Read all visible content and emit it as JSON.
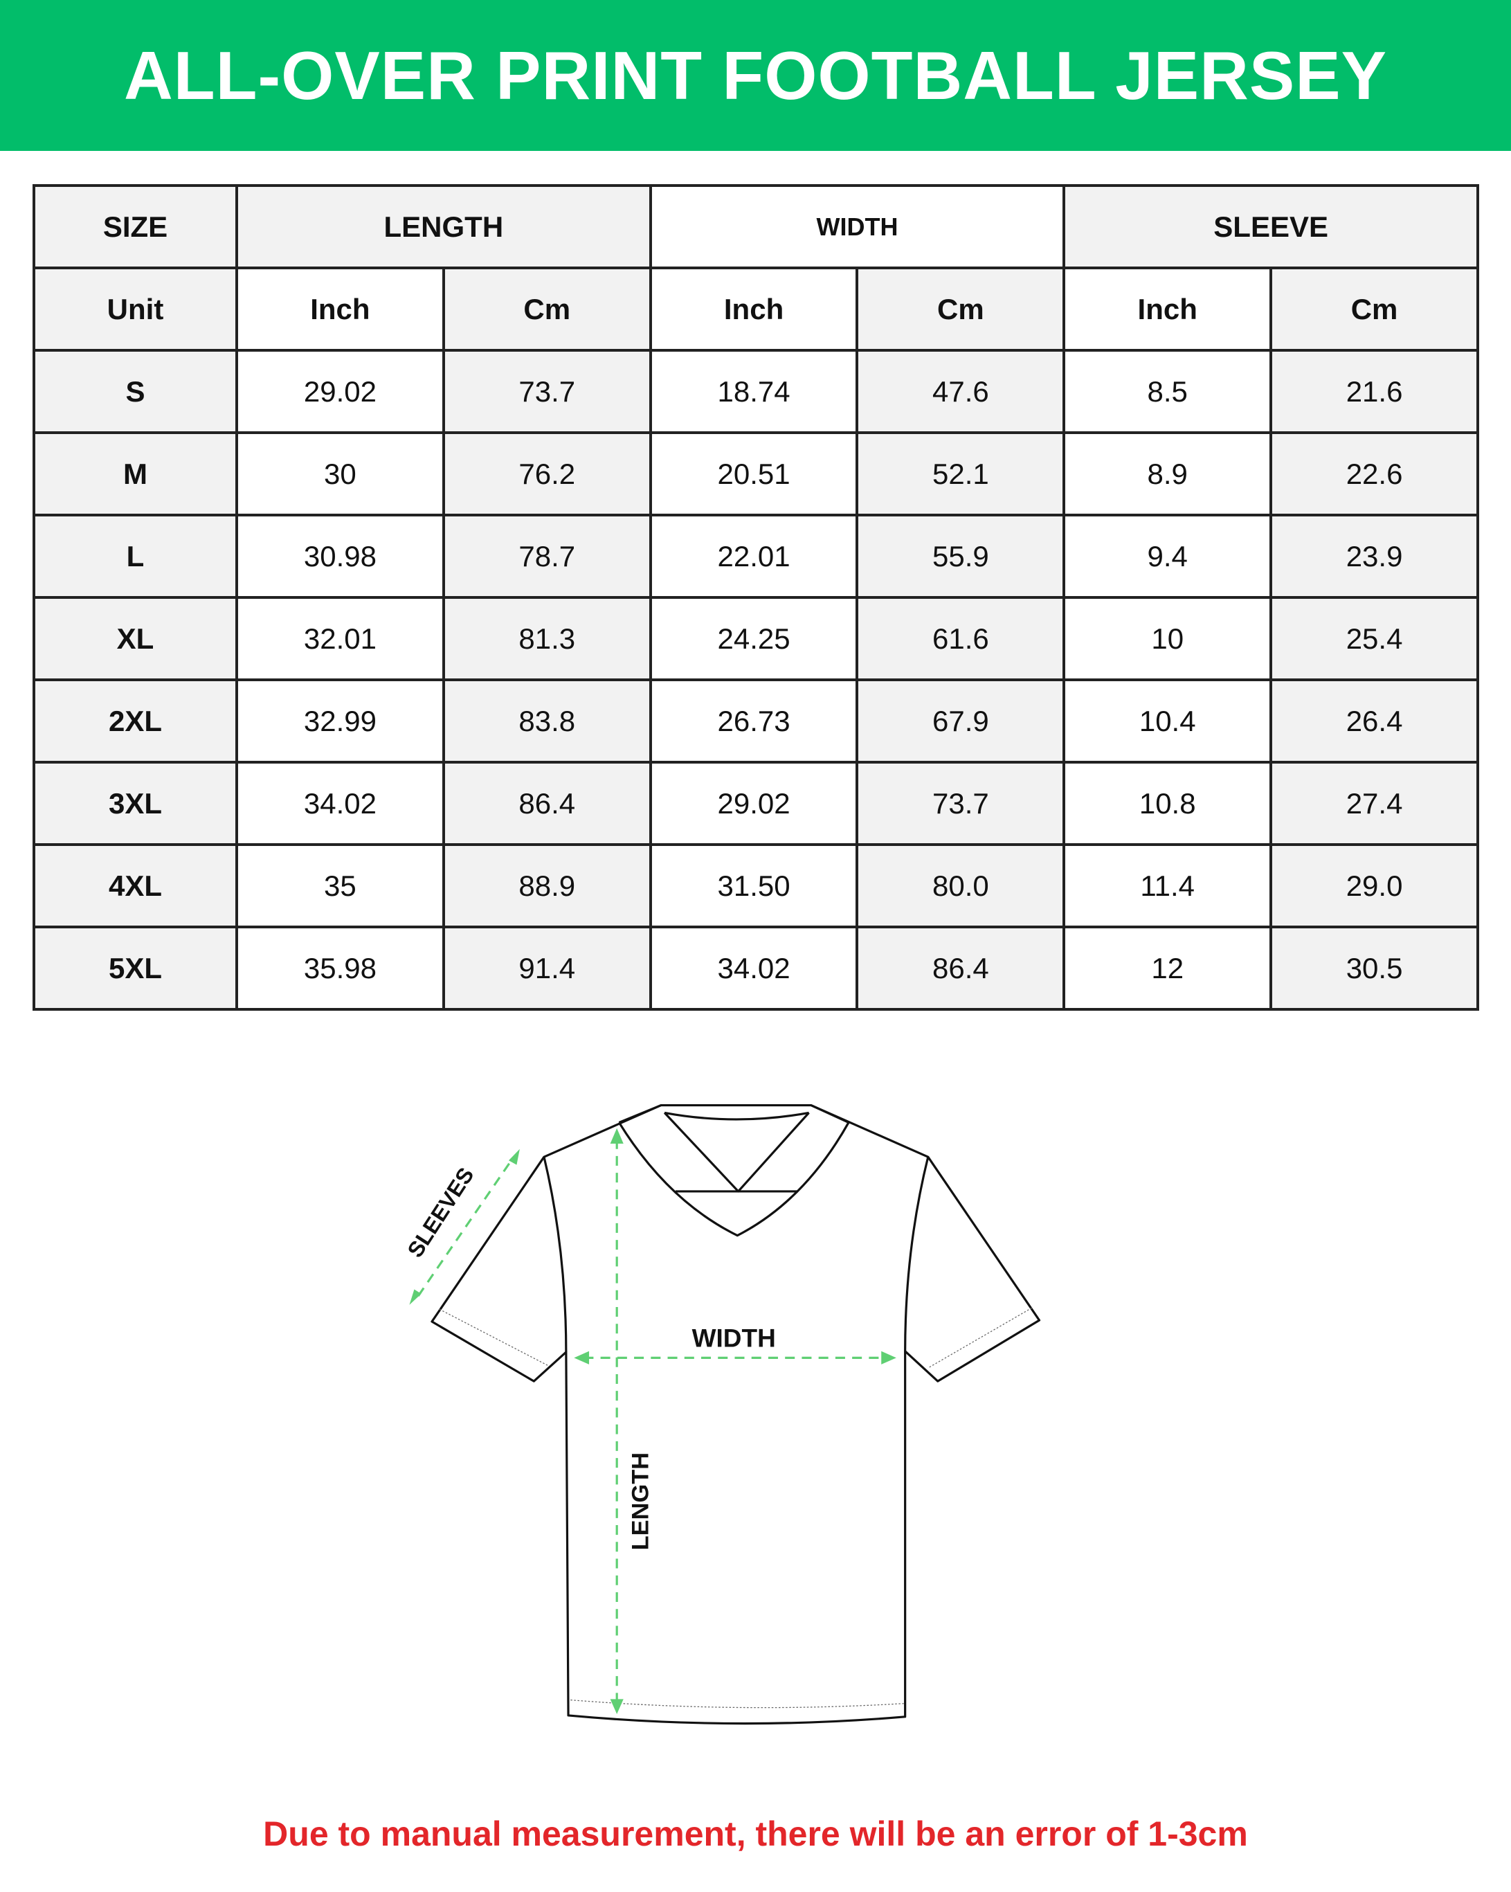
{
  "title": "ALL-OVER PRINT FOOTBALL JERSEY",
  "colors": {
    "banner": "#02bd6a",
    "arrow": "#5fcf73",
    "note": "#e3262a"
  },
  "table": {
    "group_headers": [
      "SIZE",
      "LENGTH",
      "WIDTH",
      "SLEEVE"
    ],
    "unit_row": [
      "Unit",
      "Inch",
      "Cm",
      "Inch",
      "Cm",
      "Inch",
      "Cm"
    ],
    "rows": [
      [
        "S",
        "29.02",
        "73.7",
        "18.74",
        "47.6",
        "8.5",
        "21.6"
      ],
      [
        "M",
        "30",
        "76.2",
        "20.51",
        "52.1",
        "8.9",
        "22.6"
      ],
      [
        "L",
        "30.98",
        "78.7",
        "22.01",
        "55.9",
        "9.4",
        "23.9"
      ],
      [
        "XL",
        "32.01",
        "81.3",
        "24.25",
        "61.6",
        "10",
        "25.4"
      ],
      [
        "2XL",
        "32.99",
        "83.8",
        "26.73",
        "67.9",
        "10.4",
        "26.4"
      ],
      [
        "3XL",
        "34.02",
        "86.4",
        "29.02",
        "73.7",
        "10.8",
        "27.4"
      ],
      [
        "4XL",
        "35",
        "88.9",
        "31.50",
        "80.0",
        "11.4",
        "29.0"
      ],
      [
        "5XL",
        "35.98",
        "91.4",
        "34.02",
        "86.4",
        "12",
        "30.5"
      ]
    ]
  },
  "diagram": {
    "sleeves_label": "SLEEVES",
    "width_label": "WIDTH",
    "length_label": "LENGTH"
  },
  "note": "Due to manual measurement, there will be an error of 1-3cm"
}
